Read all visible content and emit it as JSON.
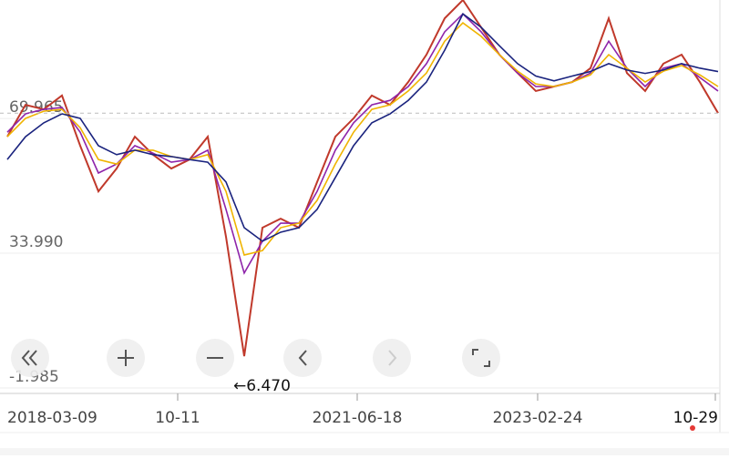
{
  "chart_data": {
    "type": "line",
    "x": [
      0,
      1,
      2,
      3,
      4,
      5,
      6,
      7,
      8,
      9,
      10,
      11,
      12,
      13,
      14,
      15,
      16,
      17,
      18,
      19,
      20,
      21,
      22,
      23,
      24,
      25,
      26,
      27,
      28,
      29,
      30,
      31,
      32,
      33,
      34,
      35,
      36,
      37,
      38,
      39
    ],
    "xlim": [
      -0.4,
      39.1
    ],
    "xticks": [
      {
        "value": -0.5,
        "label": "2018-03-09"
      },
      {
        "value": 9.35,
        "label": "10-11"
      },
      {
        "value": 19.2,
        "label": "2021-06-18"
      },
      {
        "value": 29.1,
        "label": "2023-02-24"
      },
      {
        "value": 38.85,
        "label": "10-29"
      }
    ],
    "ylim": [
      -3.45,
      101.6
    ],
    "yticks": [
      69.965,
      {
        "value": 33.99,
        "label": "33.990"
      },
      -1.985
    ],
    "annotation": "←6.470",
    "series": [
      {
        "color": "#c0392b",
        "values": [
          65.1,
          73.6,
          72.4,
          76.1,
          62.7,
          50.5,
          56.6,
          65.1,
          60.3,
          56.6,
          59.0,
          65.1,
          38.4,
          6.5,
          40.8,
          43.2,
          40.8,
          53.0,
          65.1,
          70.0,
          76.1,
          73.6,
          79.7,
          87.0,
          96.7,
          101.6,
          94.3,
          87.0,
          82.1,
          77.3,
          78.5,
          79.7,
          83.4,
          96.7,
          82.1,
          77.3,
          84.6,
          87.0,
          79.7,
          71.4
        ]
      },
      {
        "color": "#8e24aa",
        "values": [
          66.3,
          71.2,
          72.4,
          72.9,
          66.3,
          55.4,
          57.8,
          62.7,
          60.7,
          58.3,
          59.0,
          61.5,
          45.7,
          28.7,
          37.2,
          42.0,
          42.0,
          50.5,
          61.5,
          68.8,
          73.6,
          74.8,
          78.5,
          84.6,
          93.1,
          97.9,
          93.1,
          87.0,
          82.1,
          78.5,
          78.5,
          79.7,
          82.1,
          90.6,
          83.4,
          78.5,
          83.4,
          84.6,
          80.9,
          77.3
        ]
      },
      {
        "color": "#f0b400",
        "values": [
          65.1,
          70.0,
          71.9,
          72.4,
          67.5,
          59.0,
          57.8,
          61.5,
          61.5,
          59.8,
          59.0,
          60.3,
          50.5,
          33.5,
          34.7,
          40.8,
          42.0,
          48.1,
          57.8,
          66.3,
          72.4,
          73.6,
          77.3,
          82.1,
          90.6,
          95.5,
          91.9,
          87.0,
          82.6,
          79.2,
          78.5,
          79.7,
          81.6,
          87.0,
          83.4,
          79.7,
          82.6,
          84.1,
          81.6,
          78.5
        ]
      },
      {
        "color": "#1a237e",
        "values": [
          59.0,
          65.1,
          68.8,
          71.2,
          70.0,
          62.7,
          60.3,
          61.5,
          60.3,
          59.8,
          59.0,
          58.3,
          53.0,
          40.8,
          37.2,
          39.6,
          40.8,
          45.7,
          54.2,
          62.7,
          68.8,
          71.2,
          74.8,
          79.7,
          88.2,
          97.9,
          94.3,
          89.4,
          84.6,
          81.3,
          80.0,
          81.3,
          82.5,
          84.6,
          82.9,
          82.0,
          82.9,
          84.6,
          83.4,
          82.5
        ]
      }
    ]
  }
}
